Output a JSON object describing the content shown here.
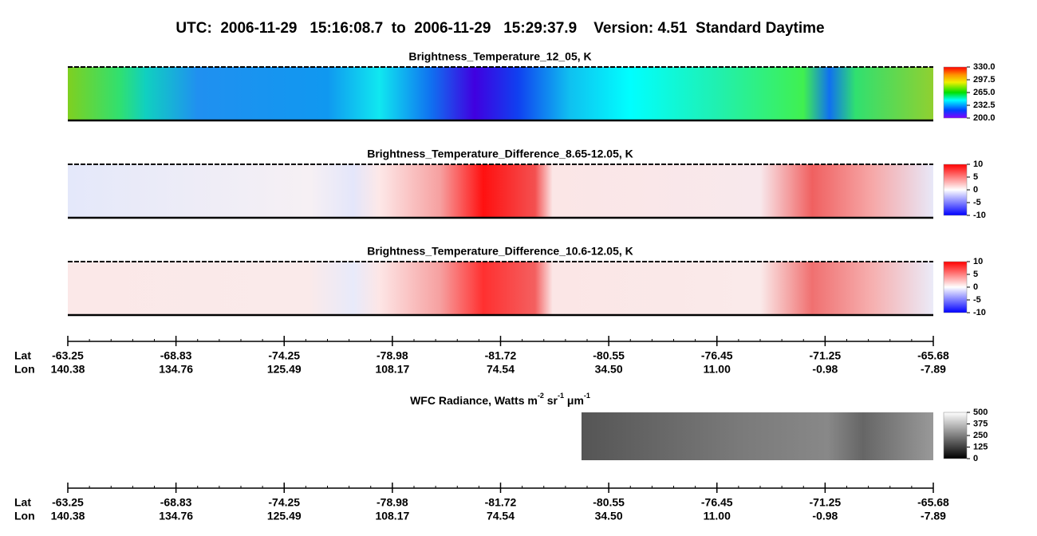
{
  "title": "UTC:  2006-11-29   15:16:08.7  to  2006-11-29   15:29:37.9    Version: 4.51  Standard Daytime",
  "panels": [
    {
      "title": "Brightness_Temperature_12_05, K",
      "colorbar": {
        "lim": [
          200,
          330
        ],
        "ticks": [
          {
            "value": 330,
            "label": "330.0"
          },
          {
            "value": 297.5,
            "label": "297.5"
          },
          {
            "value": 265,
            "label": "265.0"
          },
          {
            "value": 232.5,
            "label": "232.5"
          },
          {
            "value": 200,
            "label": "200.0"
          }
        ]
      }
    },
    {
      "title": "Brightness_Temperature_Difference_8.65-12.05, K",
      "colorbar": {
        "lim": [
          -10,
          10
        ],
        "ticks": [
          10,
          5,
          0,
          -5,
          -10
        ]
      }
    },
    {
      "title": "Brightness_Temperature_Difference_10.6-12.05, K",
      "colorbar": {
        "lim": [
          -10,
          10
        ],
        "ticks": [
          10,
          5,
          0,
          -5,
          -10
        ]
      }
    }
  ],
  "wfc": {
    "title_parts": [
      "WFC Radiance, Watts m",
      "-2",
      " sr",
      "-1",
      " μm",
      "-1"
    ],
    "colorbar": {
      "lim": [
        0,
        500
      ],
      "ticks": [
        500,
        375,
        250,
        125,
        0
      ]
    }
  },
  "axes": [
    {
      "lat_label": "Lat",
      "lon_label": "Lon",
      "lat": [
        "-63.25",
        "-68.83",
        "-74.25",
        "-78.98",
        "-81.72",
        "-80.55",
        "-76.45",
        "-71.25",
        "-65.68"
      ],
      "lon": [
        "140.38",
        "134.76",
        "125.49",
        "108.17",
        "74.54",
        "34.50",
        "11.00",
        "-0.98",
        "-7.89"
      ]
    },
    {
      "lat_label": "Lat",
      "lon_label": "Lon",
      "lat": [
        "-63.25",
        "-68.83",
        "-74.25",
        "-78.98",
        "-81.72",
        "-80.55",
        "-76.45",
        "-71.25",
        "-65.68"
      ],
      "lon": [
        "140.38",
        "134.76",
        "125.49",
        "108.17",
        "74.54",
        "34.50",
        "11.00",
        "-0.98",
        "-7.89"
      ]
    }
  ]
}
